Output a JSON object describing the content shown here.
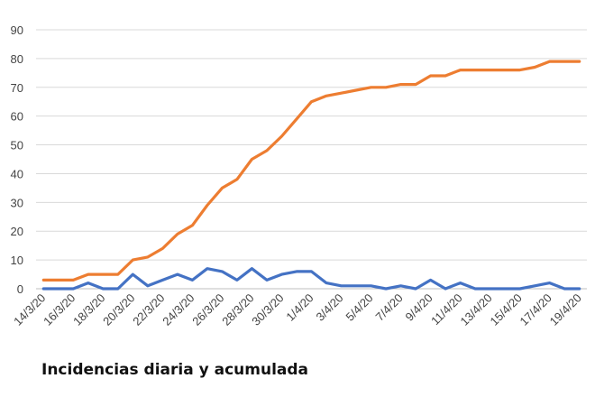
{
  "caption": "Incidencias diaria y acumulada",
  "chart_data": {
    "type": "line",
    "title": "",
    "xlabel": "",
    "ylabel": "",
    "ylim": [
      0,
      90
    ],
    "yticks": [
      0,
      10,
      20,
      30,
      40,
      50,
      60,
      70,
      80,
      90
    ],
    "grid": "horizontal",
    "x": [
      "14/3/20",
      "15/3/20",
      "16/3/20",
      "17/3/20",
      "18/3/20",
      "19/3/20",
      "20/3/20",
      "21/3/20",
      "22/3/20",
      "23/3/20",
      "24/3/20",
      "25/3/20",
      "26/3/20",
      "27/3/20",
      "28/3/20",
      "29/3/20",
      "30/3/20",
      "31/3/20",
      "1/4/20",
      "2/4/20",
      "3/4/20",
      "4/4/20",
      "5/4/20",
      "6/4/20",
      "7/4/20",
      "8/4/20",
      "9/4/20",
      "10/4/20",
      "11/4/20",
      "12/4/20",
      "13/4/20",
      "14/4/20",
      "15/4/20",
      "16/4/20",
      "17/4/20",
      "18/4/20",
      "19/4/20"
    ],
    "x_tick_labels": [
      "14/3/20",
      "16/3/20",
      "18/3/20",
      "20/3/20",
      "22/3/20",
      "24/3/20",
      "26/3/20",
      "28/3/20",
      "30/3/20",
      "1/4/20",
      "3/4/20",
      "5/4/20",
      "7/4/20",
      "9/4/20",
      "11/4/20",
      "13/4/20",
      "15/4/20",
      "17/4/20",
      "19/4/20"
    ],
    "series": [
      {
        "color": "#ED7D31",
        "values": [
          3,
          3,
          3,
          5,
          5,
          5,
          10,
          11,
          14,
          19,
          22,
          29,
          35,
          38,
          45,
          48,
          53,
          59,
          65,
          67,
          68,
          69,
          70,
          70,
          71,
          71,
          74,
          74,
          76,
          76,
          76,
          76,
          76,
          77,
          79,
          79,
          79
        ]
      },
      {
        "color": "#4472C4",
        "values": [
          0,
          0,
          0,
          2,
          0,
          0,
          5,
          1,
          3,
          5,
          3,
          7,
          6,
          3,
          7,
          3,
          5,
          6,
          6,
          2,
          1,
          1,
          1,
          0,
          1,
          0,
          3,
          0,
          2,
          0,
          0,
          0,
          0,
          1,
          2,
          0,
          0
        ]
      }
    ]
  }
}
